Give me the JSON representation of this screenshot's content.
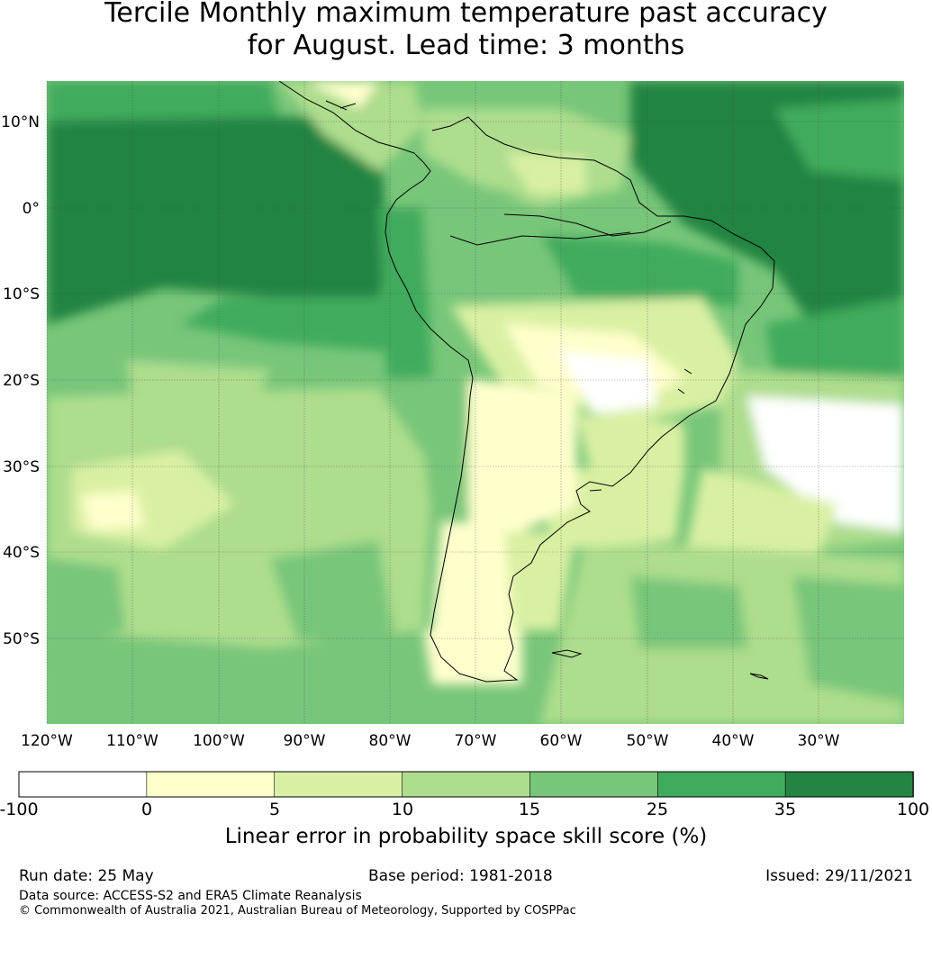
{
  "title": {
    "line1": "Tercile Monthly maximum temperature past accuracy",
    "line2": "for August. Lead time: 3 months"
  },
  "map": {
    "lat_labels": [
      "10°N",
      "0°",
      "10°S",
      "20°S",
      "30°S",
      "40°S",
      "50°S"
    ],
    "lon_labels": [
      "120°W",
      "110°W",
      "100°W",
      "90°W",
      "80°W",
      "70°W",
      "60°W",
      "50°W",
      "40°W",
      "30°W"
    ]
  },
  "colorbar": {
    "ticks": [
      "-100",
      "0",
      "5",
      "10",
      "15",
      "25",
      "35",
      "100"
    ],
    "colors": [
      "#ffffff",
      "#ffffcc",
      "#d9f0a3",
      "#addd8e",
      "#78c679",
      "#41ab5d",
      "#238443"
    ],
    "label": "Linear error in probability space skill score (%)"
  },
  "footer": {
    "run_date": "Run date: 25 May",
    "base_period": "Base period: 1981-2018",
    "issued": "Issued: 29/11/2021",
    "data_source": "Data source: ACCESS-S2 and ERA5 Climate Reanalysis",
    "copyright": "© Commonwealth of Australia 2021, Australian Bureau of Meteorology, Supported by COSPPac"
  }
}
